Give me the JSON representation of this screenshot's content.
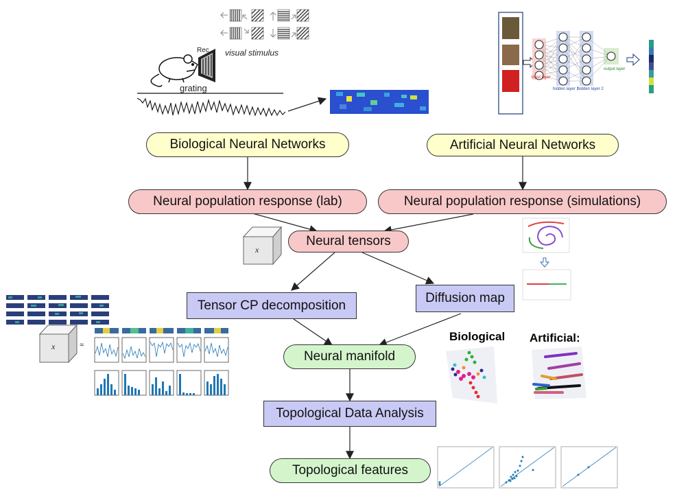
{
  "nodes": {
    "bio_nn": "Biological Neural Networks",
    "art_nn": "Artificial Neural Networks",
    "npr_lab": "Neural population response (lab)",
    "npr_sim": "Neural population response (simulations)",
    "tensors": "Neural tensors",
    "cp": "Tensor CP decomposition",
    "diffusion": "Diffusion map",
    "manifold": "Neural manifold",
    "tda": "Topological Data Analysis",
    "features": "Topological features"
  },
  "labels": {
    "visual_stimulus": "visual stimulus",
    "grating": "grating",
    "rec": "Rec.",
    "biological": "Biological",
    "artificial": "Artificial:",
    "input_layer": "input layer",
    "hidden1": "hidden layer 1",
    "hidden2": "hidden layer 2",
    "output_layer": "output layer",
    "approx": "≈",
    "x_symbol": "x"
  },
  "colors": {
    "yellow": "#ffffcc",
    "pink": "#f8c8c8",
    "green": "#d4f5cc",
    "lavender": "#c9c9f5",
    "plot_blue": "#1f77b4"
  }
}
